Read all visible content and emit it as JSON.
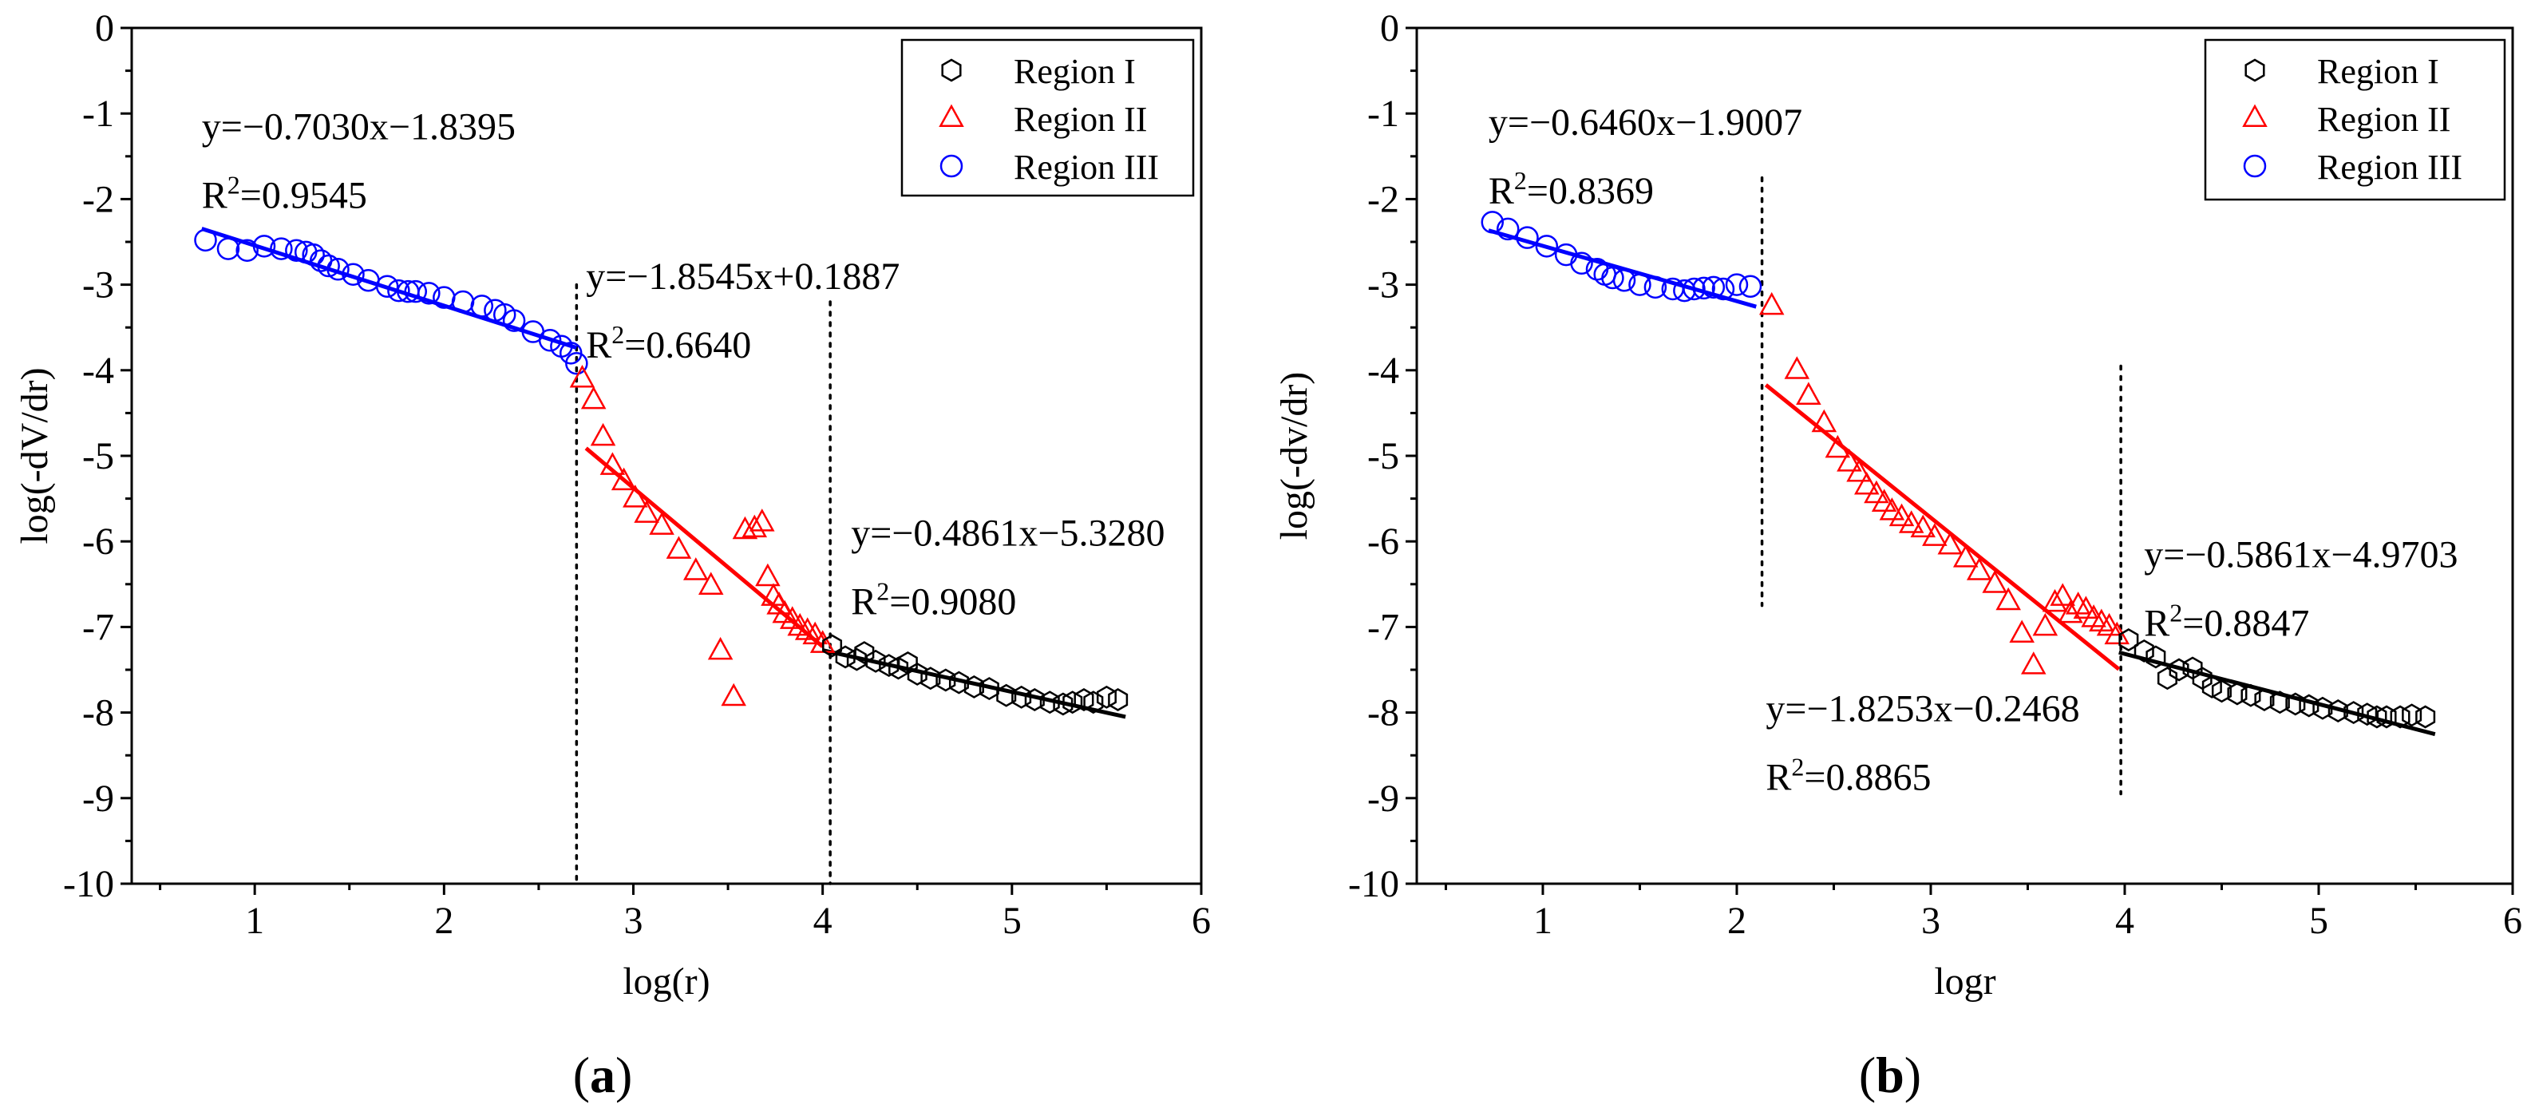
{
  "chart_data": [
    {
      "type": "scatter",
      "panel_label": "a",
      "xlabel": "log(r)",
      "ylabel": "log(-dV/dr)",
      "xlim": [
        0.35,
        6
      ],
      "ylim": [
        -10,
        0
      ],
      "xticks": [
        1,
        2,
        3,
        4,
        5,
        6
      ],
      "yticks": [
        0,
        -1,
        -2,
        -3,
        -4,
        -5,
        -6,
        -7,
        -8,
        -9,
        -10
      ],
      "legend": {
        "position": "top-right",
        "entries": [
          {
            "label": "Region I",
            "marker": "hexagon",
            "color": "#000000"
          },
          {
            "label": "Region II",
            "marker": "triangle",
            "color": "#ff0000"
          },
          {
            "label": "Region III",
            "marker": "circle",
            "color": "#0000ff"
          }
        ]
      },
      "series": [
        {
          "name": "Region III",
          "marker": "circle",
          "color": "#0000ff",
          "x": [
            0.74,
            0.86,
            0.96,
            1.05,
            1.14,
            1.22,
            1.27,
            1.31,
            1.35,
            1.39,
            1.44,
            1.52,
            1.6,
            1.7,
            1.76,
            1.81,
            1.85,
            1.92,
            2.0,
            2.1,
            2.2,
            2.27,
            2.32,
            2.37,
            2.47,
            2.56,
            2.62,
            2.67,
            2.7
          ],
          "y": [
            -2.48,
            -2.58,
            -2.6,
            -2.55,
            -2.58,
            -2.6,
            -2.62,
            -2.65,
            -2.72,
            -2.78,
            -2.82,
            -2.88,
            -2.95,
            -3.02,
            -3.07,
            -3.08,
            -3.08,
            -3.1,
            -3.15,
            -3.2,
            -3.25,
            -3.3,
            -3.35,
            -3.42,
            -3.55,
            -3.65,
            -3.72,
            -3.8,
            -3.92
          ]
        },
        {
          "name": "Region II",
          "marker": "triangle",
          "color": "#ff0000",
          "x": [
            2.73,
            2.79,
            2.84,
            2.89,
            2.95,
            3.01,
            3.07,
            3.15,
            3.24,
            3.33,
            3.41,
            3.46,
            3.53,
            3.59,
            3.64,
            3.68,
            3.71,
            3.74,
            3.77,
            3.8,
            3.84,
            3.88,
            3.92,
            3.96,
            4.0
          ],
          "y": [
            -4.1,
            -4.35,
            -4.78,
            -5.12,
            -5.3,
            -5.5,
            -5.68,
            -5.82,
            -6.1,
            -6.35,
            -6.52,
            -7.28,
            -7.82,
            -5.87,
            -5.85,
            -5.78,
            -6.42,
            -6.65,
            -6.75,
            -6.85,
            -6.92,
            -7.0,
            -7.05,
            -7.1,
            -7.2
          ]
        },
        {
          "name": "Region I",
          "marker": "hexagon",
          "color": "#000000",
          "x": [
            4.05,
            4.12,
            4.18,
            4.22,
            4.28,
            4.35,
            4.4,
            4.45,
            4.5,
            4.57,
            4.65,
            4.72,
            4.8,
            4.88,
            4.97,
            5.05,
            5.12,
            5.2,
            5.27,
            5.32,
            5.38,
            5.43,
            5.5,
            5.56
          ],
          "y": [
            -7.22,
            -7.35,
            -7.38,
            -7.3,
            -7.4,
            -7.45,
            -7.48,
            -7.42,
            -7.55,
            -7.6,
            -7.62,
            -7.65,
            -7.7,
            -7.72,
            -7.8,
            -7.82,
            -7.85,
            -7.88,
            -7.9,
            -7.88,
            -7.85,
            -7.88,
            -7.82,
            -7.85
          ]
        }
      ],
      "fits": [
        {
          "series": "Region III",
          "slope": -0.703,
          "intercept": -1.8395,
          "x_range": [
            0.72,
            2.7
          ],
          "color": "#0000ff"
        },
        {
          "series": "Region II",
          "slope": -1.8545,
          "intercept": 0.1887,
          "x_range": [
            2.75,
            4.0
          ],
          "color": "#ff0000"
        },
        {
          "series": "Region I",
          "slope": -0.4861,
          "intercept": -5.328,
          "x_range": [
            4.0,
            5.6
          ],
          "color": "#000000"
        }
      ],
      "divider_lines": [
        {
          "x": 2.7,
          "y_range": [
            -10,
            -3.0
          ]
        },
        {
          "x": 4.04,
          "y_range": [
            -10,
            -3.2
          ]
        }
      ],
      "annotations": [
        {
          "equation": "y=−0.7030x−1.8395",
          "r2_value": "=0.9545",
          "at": [
            0.72,
            -1.3
          ]
        },
        {
          "equation": "y=−1.8545x+0.1887",
          "r2_value": "=0.6640",
          "at": [
            2.75,
            -3.05
          ]
        },
        {
          "equation": "y=−0.4861x−5.3280",
          "r2_value": "=0.9080",
          "at": [
            4.15,
            -6.05
          ]
        }
      ]
    },
    {
      "type": "scatter",
      "panel_label": "b",
      "xlabel": "logr",
      "ylabel": "log(-dv/dr)",
      "xlim": [
        0.35,
        6
      ],
      "ylim": [
        -10,
        0
      ],
      "xticks": [
        1,
        2,
        3,
        4,
        5,
        6
      ],
      "yticks": [
        0,
        -1,
        -2,
        -3,
        -4,
        -5,
        -6,
        -7,
        -8,
        -9,
        -10
      ],
      "legend": {
        "position": "top-right",
        "entries": [
          {
            "label": "Region I",
            "marker": "hexagon",
            "color": "#000000"
          },
          {
            "label": "Region II",
            "marker": "triangle",
            "color": "#ff0000"
          },
          {
            "label": "Region III",
            "marker": "circle",
            "color": "#0000ff"
          }
        ]
      },
      "series": [
        {
          "name": "Region III",
          "marker": "circle",
          "color": "#0000ff",
          "x": [
            0.74,
            0.82,
            0.92,
            1.02,
            1.12,
            1.2,
            1.28,
            1.32,
            1.36,
            1.42,
            1.5,
            1.58,
            1.67,
            1.73,
            1.78,
            1.83,
            1.88,
            1.93,
            2.0,
            2.07
          ],
          "y": [
            -2.27,
            -2.35,
            -2.45,
            -2.55,
            -2.65,
            -2.75,
            -2.82,
            -2.88,
            -2.92,
            -2.95,
            -3.0,
            -3.03,
            -3.05,
            -3.07,
            -3.05,
            -3.04,
            -3.03,
            -3.05,
            -3.0,
            -3.02
          ]
        },
        {
          "name": "Region II",
          "marker": "triangle",
          "color": "#ff0000",
          "x": [
            2.18,
            2.31,
            2.37,
            2.45,
            2.52,
            2.58,
            2.63,
            2.67,
            2.72,
            2.76,
            2.8,
            2.85,
            2.9,
            2.96,
            3.02,
            3.1,
            3.18,
            3.25,
            3.33,
            3.4,
            3.47,
            3.53,
            3.59,
            3.64,
            3.68,
            3.72,
            3.76,
            3.8,
            3.84,
            3.88,
            3.92,
            3.96
          ],
          "y": [
            -3.25,
            -4.0,
            -4.3,
            -4.62,
            -4.92,
            -5.08,
            -5.2,
            -5.35,
            -5.45,
            -5.55,
            -5.65,
            -5.72,
            -5.8,
            -5.85,
            -5.95,
            -6.05,
            -6.2,
            -6.35,
            -6.5,
            -6.7,
            -7.08,
            -7.45,
            -7.0,
            -6.72,
            -6.65,
            -6.85,
            -6.75,
            -6.8,
            -6.9,
            -6.95,
            -7.0,
            -7.1
          ]
        },
        {
          "name": "Region I",
          "marker": "hexagon",
          "color": "#000000",
          "x": [
            4.02,
            4.1,
            4.16,
            4.22,
            4.28,
            4.35,
            4.4,
            4.45,
            4.5,
            4.58,
            4.65,
            4.72,
            4.8,
            4.88,
            4.95,
            5.02,
            5.1,
            5.18,
            5.25,
            5.3,
            5.35,
            5.42,
            5.48,
            5.55
          ],
          "y": [
            -7.15,
            -7.28,
            -7.35,
            -7.6,
            -7.5,
            -7.48,
            -7.6,
            -7.7,
            -7.75,
            -7.78,
            -7.8,
            -7.85,
            -7.88,
            -7.9,
            -7.92,
            -7.95,
            -7.98,
            -8.0,
            -8.02,
            -8.05,
            -8.05,
            -8.05,
            -8.03,
            -8.05
          ]
        }
      ],
      "fits": [
        {
          "series": "Region III",
          "slope": -0.646,
          "intercept": -1.9007,
          "x_range": [
            0.72,
            2.1
          ],
          "color": "#0000ff"
        },
        {
          "series": "Region II",
          "slope": -1.8253,
          "intercept": -0.2468,
          "x_range": [
            2.15,
            3.97
          ],
          "color": "#ff0000"
        },
        {
          "series": "Region I",
          "slope": -0.5861,
          "intercept": -4.9703,
          "x_range": [
            3.97,
            5.6
          ],
          "color": "#000000"
        }
      ],
      "divider_lines": [
        {
          "x": 2.13,
          "y_range": [
            -6.75,
            -1.75
          ]
        },
        {
          "x": 3.98,
          "y_range": [
            -8.95,
            -3.95
          ]
        }
      ],
      "annotations": [
        {
          "equation": "y=−0.6460x−1.9007",
          "r2_value": "=0.8369",
          "at": [
            0.72,
            -1.25
          ]
        },
        {
          "equation": "y=−1.8253x−0.2468",
          "r2_value": "=0.8865",
          "at": [
            2.15,
            -8.1
          ]
        },
        {
          "equation": "y=−0.5861x−4.9703",
          "r2_value": "=0.8847",
          "at": [
            4.1,
            -6.3
          ]
        }
      ]
    }
  ]
}
